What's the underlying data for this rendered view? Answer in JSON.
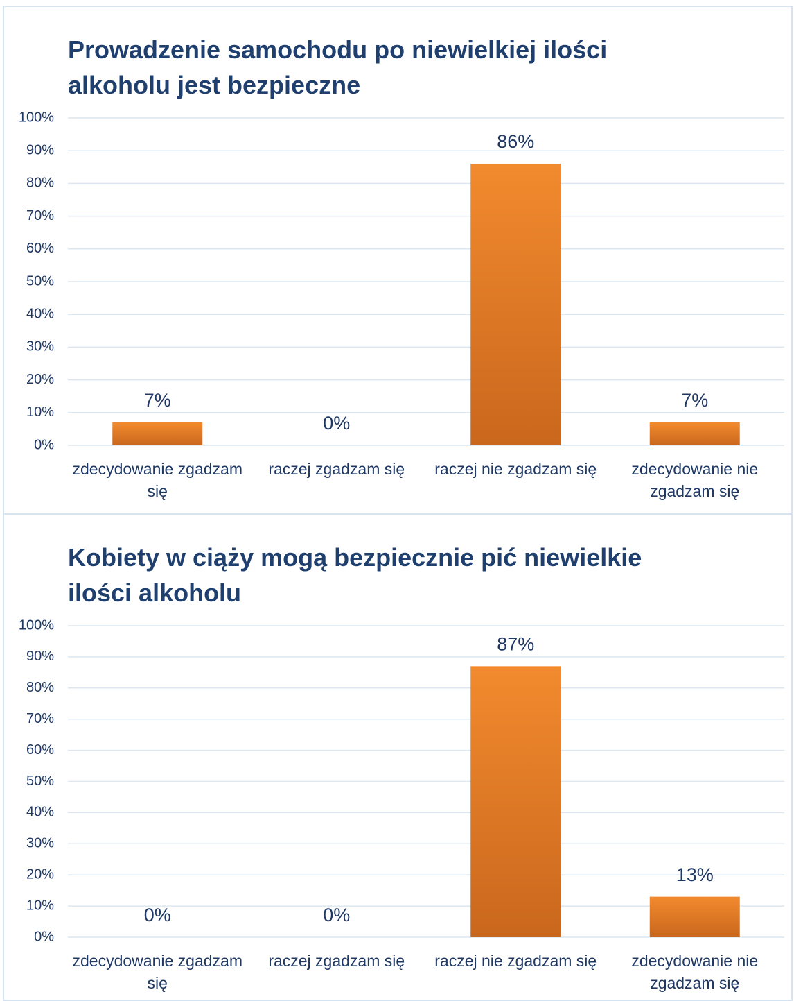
{
  "chart_data": [
    {
      "type": "bar",
      "title": "Prowadzenie samochodu po niewielkiej ilości alkoholu jest bezpieczne",
      "categories": [
        "zdecydowanie zgadzam się",
        "raczej zgadzam się",
        "raczej nie zgadzam się",
        "zdecydowanie nie zgadzam się"
      ],
      "values": [
        7,
        0,
        86,
        7
      ],
      "value_labels": [
        "7%",
        "0%",
        "86%",
        "7%"
      ],
      "color": "#f28a2e",
      "ylim": [
        0,
        100
      ],
      "yticks": [
        {
          "value": 0,
          "label": "0%"
        },
        {
          "value": 10,
          "label": "10%"
        },
        {
          "value": 20,
          "label": "20%"
        },
        {
          "value": 30,
          "label": "30%"
        },
        {
          "value": 40,
          "label": "40%"
        },
        {
          "value": 50,
          "label": "50%"
        },
        {
          "value": 60,
          "label": "60%"
        },
        {
          "value": 70,
          "label": "70%"
        },
        {
          "value": 80,
          "label": "80%"
        },
        {
          "value": 90,
          "label": "90%"
        },
        {
          "value": 100,
          "label": "100%"
        }
      ],
      "grid": true
    },
    {
      "type": "bar",
      "title": "Kobiety w ciąży mogą bezpiecznie pić niewielkie ilości alkoholu",
      "categories": [
        "zdecydowanie zgadzam się",
        "raczej zgadzam się",
        "raczej nie zgadzam się",
        "zdecydowanie nie zgadzam się"
      ],
      "values": [
        0,
        0,
        87,
        13
      ],
      "value_labels": [
        "0%",
        "0%",
        "87%",
        "13%"
      ],
      "color": "#f28a2e",
      "ylim": [
        0,
        100
      ],
      "yticks": [
        {
          "value": 0,
          "label": "0%"
        },
        {
          "value": 10,
          "label": "10%"
        },
        {
          "value": 20,
          "label": "20%"
        },
        {
          "value": 30,
          "label": "30%"
        },
        {
          "value": 40,
          "label": "40%"
        },
        {
          "value": 50,
          "label": "50%"
        },
        {
          "value": 60,
          "label": "60%"
        },
        {
          "value": 70,
          "label": "70%"
        },
        {
          "value": 80,
          "label": "80%"
        },
        {
          "value": 90,
          "label": "90%"
        },
        {
          "value": 100,
          "label": "100%"
        }
      ],
      "grid": true
    }
  ]
}
